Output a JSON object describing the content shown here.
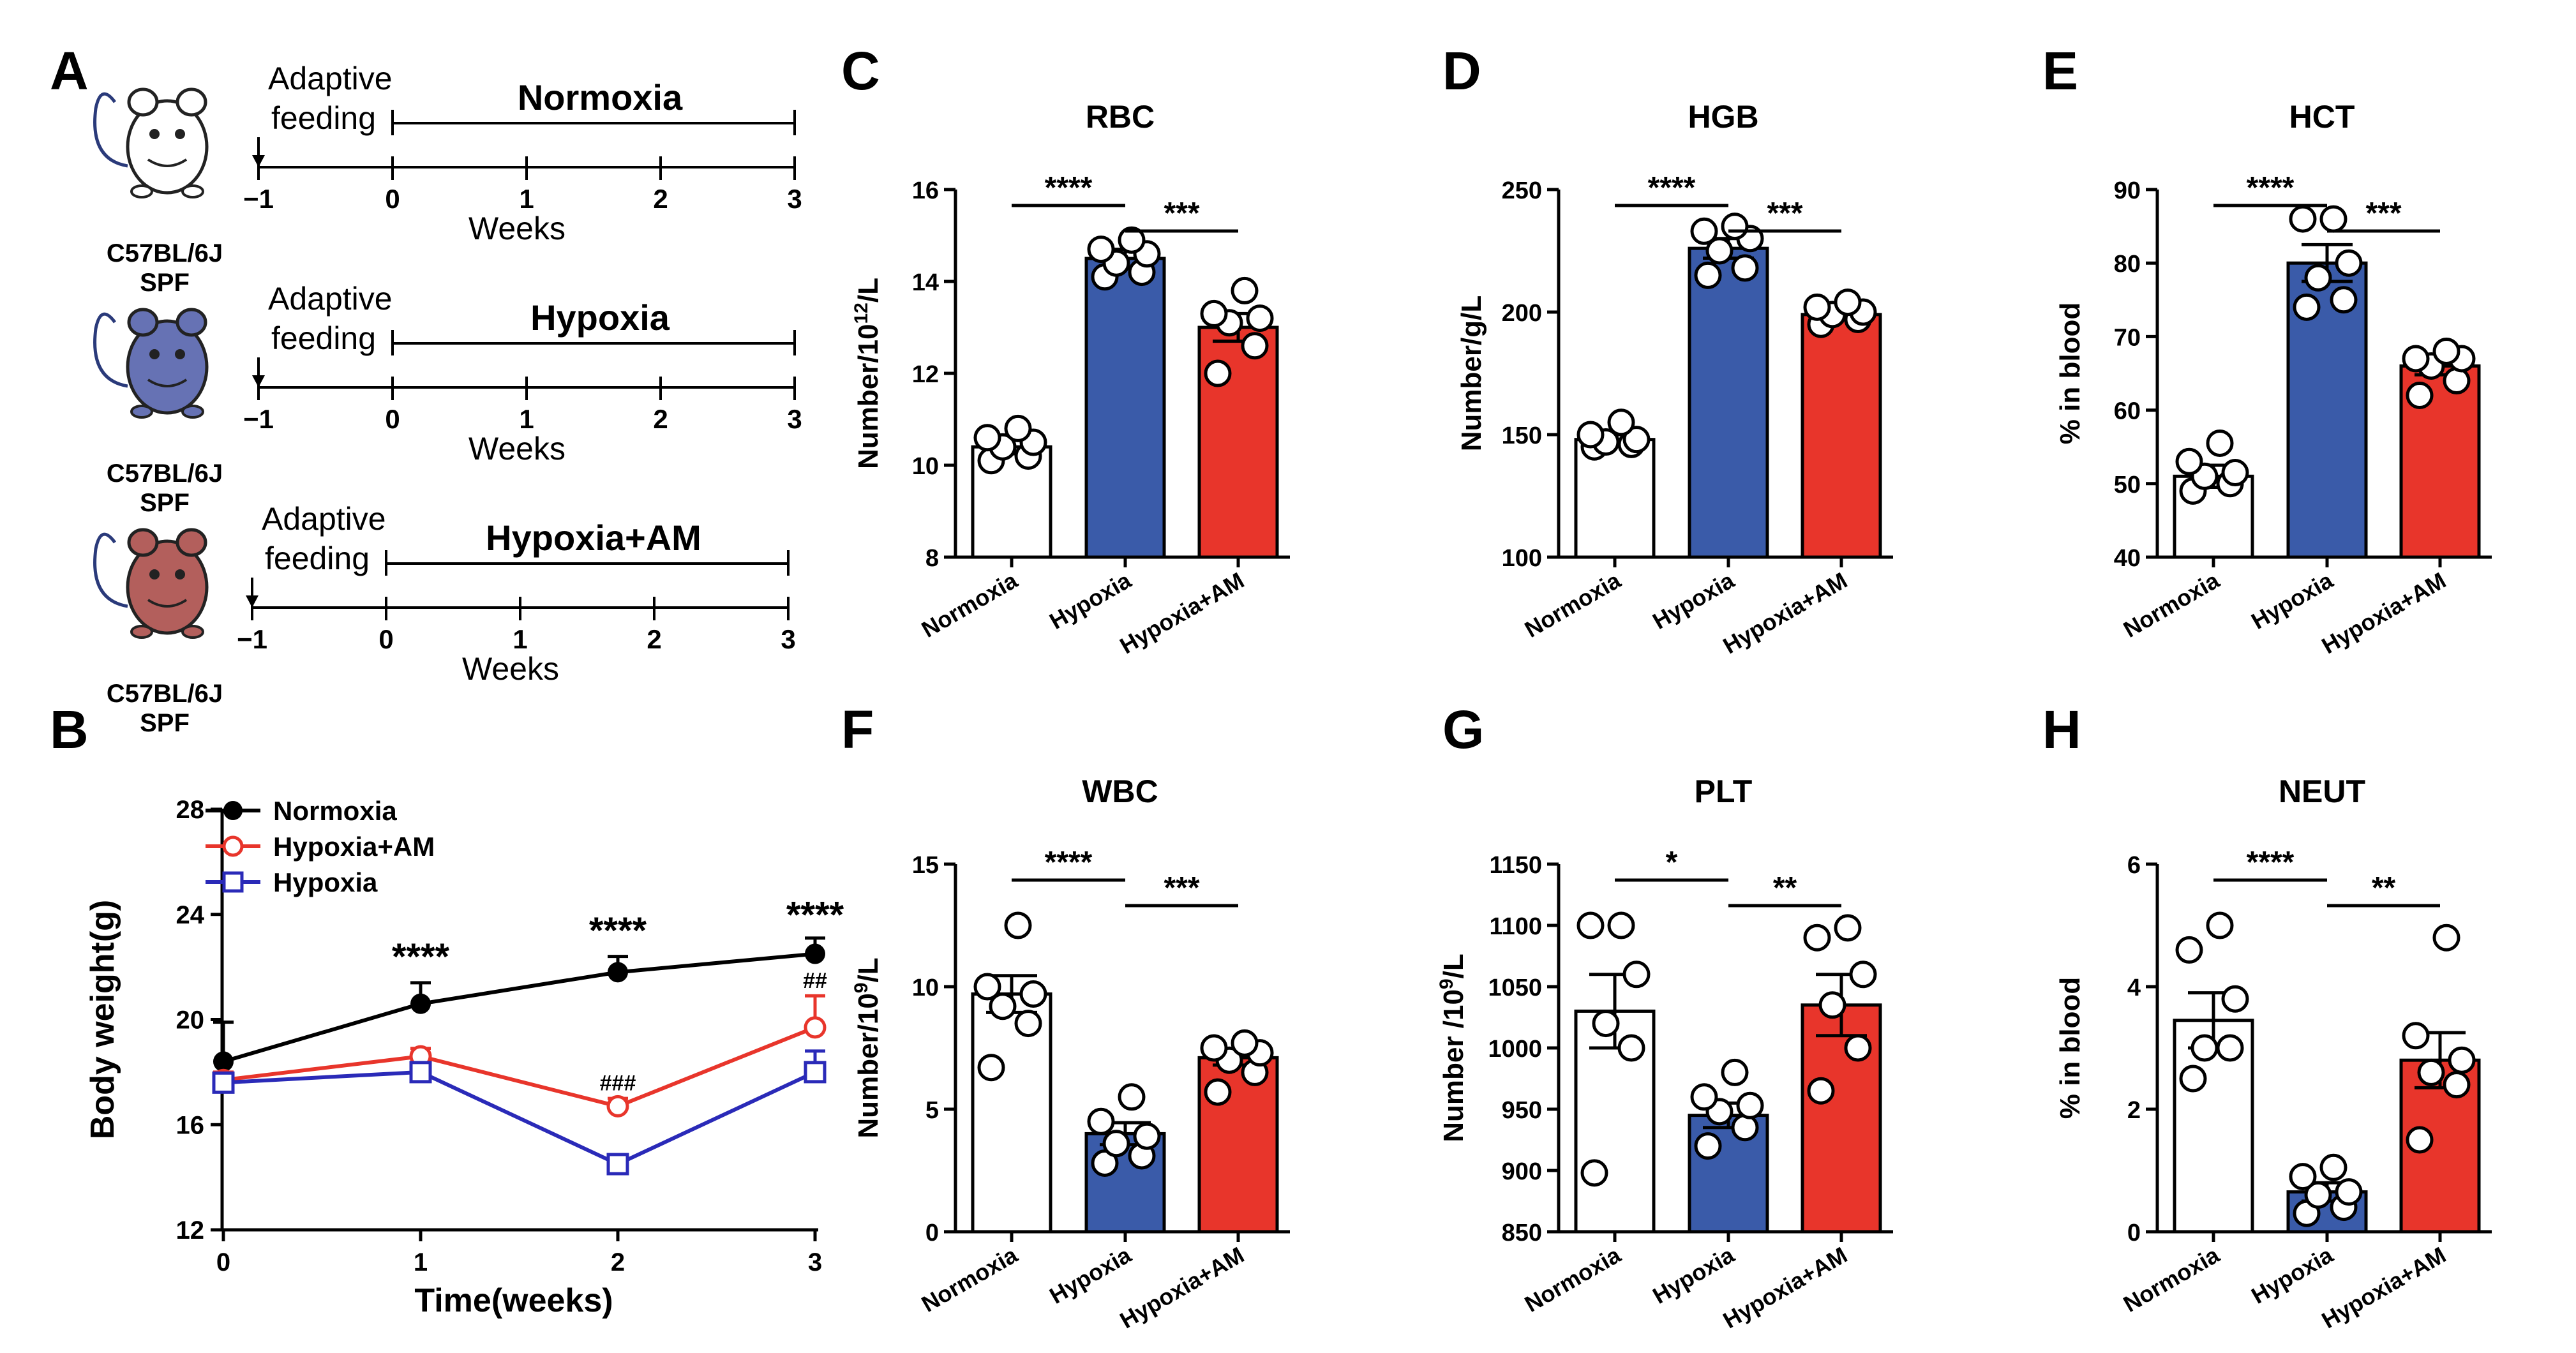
{
  "colors": {
    "normoxia": "#ffffff",
    "hypoxia": "#3a5ba9",
    "hypoxia_am": "#e8352b",
    "black": "#000000",
    "red": "#e8352b",
    "blue": "#2a2ab8"
  },
  "panelA": {
    "letter": "A",
    "timelines": [
      {
        "title": "Normoxia",
        "adaptive": "Adaptive",
        "feeding": "feeding",
        "weeks_label": "Weeks",
        "ticks": [
          "−1",
          "0",
          "1",
          "2",
          "3"
        ],
        "mouse": [
          "C57BL/6J",
          "SPF"
        ],
        "mouse_color": "#ffffff",
        "icon": "white-mouse-icon"
      },
      {
        "title": "Hypoxia",
        "adaptive": "Adaptive",
        "feeding": "feeding",
        "weeks_label": "Weeks",
        "ticks": [
          "−1",
          "0",
          "1",
          "2",
          "3"
        ],
        "mouse": [
          "C57BL/6J",
          "SPF"
        ],
        "mouse_color": "#6672b4",
        "icon": "blue-mouse-icon"
      },
      {
        "title": "Hypoxia+AM",
        "adaptive": "Adaptive",
        "feeding": "feeding",
        "weeks_label": "Weeks",
        "ticks": [
          "−1",
          "0",
          "1",
          "2",
          "3"
        ],
        "mouse": [
          "C57BL/6J",
          "SPF"
        ],
        "mouse_color": "#b35f5c",
        "icon": "red-mouse-icon"
      }
    ]
  },
  "chart_data": [
    {
      "panel": "B",
      "type": "line",
      "title": "",
      "xlabel": "Time(weeks)",
      "ylabel": "Body weight(g)",
      "x": [
        0,
        1,
        2,
        3
      ],
      "xticks": [
        "0",
        "1",
        "2",
        "3"
      ],
      "ylim": [
        12,
        28
      ],
      "yticks": [
        "12",
        "16",
        "20",
        "24",
        "28"
      ],
      "legend": "top-left",
      "series": [
        {
          "name": "Normoxia",
          "color": "#000000",
          "marker": "circle-filled",
          "values": [
            18.4,
            20.6,
            21.8,
            22.5
          ],
          "err": [
            1.5,
            0.8,
            0.6,
            0.6
          ]
        },
        {
          "name": "Hypoxia+AM",
          "color": "#e8352b",
          "marker": "circle-open",
          "values": [
            17.7,
            18.6,
            16.7,
            19.7
          ],
          "err": [
            0.3,
            0.3,
            0.3,
            1.2
          ]
        },
        {
          "name": "Hypoxia",
          "color": "#2a2ab8",
          "marker": "square-open",
          "values": [
            17.6,
            18.0,
            14.5,
            18.0
          ],
          "err": [
            0.2,
            0.3,
            0.3,
            0.8
          ]
        }
      ],
      "annotations": [
        {
          "x": 1,
          "label": "****",
          "y": 21.9
        },
        {
          "x": 2,
          "label": "****",
          "y": 22.9
        },
        {
          "x": 3,
          "label": "****",
          "y": 23.5
        },
        {
          "x": 2,
          "label": "###",
          "y": 17.3
        },
        {
          "x": 3,
          "label": "##",
          "y": 21.2
        }
      ]
    },
    {
      "panel": "C",
      "type": "bar",
      "title": "RBC",
      "ylabel": "Number/10^12/L",
      "categories": [
        "Normoxia",
        "Hypoxia",
        "Hypoxia+AM"
      ],
      "values": [
        10.4,
        14.5,
        13.0
      ],
      "sem": [
        0.15,
        0.2,
        0.3
      ],
      "ylim": [
        8,
        16
      ],
      "yticks": [
        "8",
        "10",
        "12",
        "14",
        "16"
      ],
      "points": [
        [
          10.1,
          10.2,
          10.4,
          10.5,
          10.6,
          10.8
        ],
        [
          14.1,
          14.2,
          14.4,
          14.6,
          14.7,
          14.9
        ],
        [
          12.0,
          12.6,
          13.1,
          13.2,
          13.3,
          13.8
        ]
      ],
      "sig": [
        {
          "from": 0,
          "to": 1,
          "label": "****"
        },
        {
          "from": 1,
          "to": 2,
          "label": "***"
        }
      ]
    },
    {
      "panel": "D",
      "type": "bar",
      "title": "HGB",
      "ylabel": "Number/g/L",
      "categories": [
        "Normoxia",
        "Hypoxia",
        "Hypoxia+AM"
      ],
      "values": [
        148,
        226,
        199
      ],
      "sem": [
        2,
        4,
        2
      ],
      "ylim": [
        100,
        250
      ],
      "yticks": [
        "100",
        "150",
        "200",
        "250"
      ],
      "points": [
        [
          145,
          146,
          147,
          148,
          150,
          155
        ],
        [
          215,
          218,
          225,
          230,
          233,
          235
        ],
        [
          195,
          197,
          199,
          200,
          202,
          204
        ]
      ],
      "sig": [
        {
          "from": 0,
          "to": 1,
          "label": "****"
        },
        {
          "from": 1,
          "to": 2,
          "label": "***"
        }
      ]
    },
    {
      "panel": "E",
      "type": "bar",
      "title": "HCT",
      "ylabel": "% in blood",
      "categories": [
        "Normoxia",
        "Hypoxia",
        "Hypoxia+AM"
      ],
      "values": [
        51,
        80,
        66
      ],
      "sem": [
        1.5,
        2.5,
        1.2
      ],
      "ylim": [
        40,
        90
      ],
      "yticks": [
        "40",
        "50",
        "60",
        "70",
        "80",
        "90"
      ],
      "points": [
        [
          49,
          50,
          51,
          51.5,
          53,
          55.5
        ],
        [
          74,
          75,
          78,
          80,
          86,
          86
        ],
        [
          62,
          64,
          66,
          67,
          67,
          68
        ]
      ],
      "sig": [
        {
          "from": 0,
          "to": 1,
          "label": "****"
        },
        {
          "from": 1,
          "to": 2,
          "label": "***"
        }
      ]
    },
    {
      "panel": "F",
      "type": "bar",
      "title": "WBC",
      "ylabel": "Number/10^9/L",
      "categories": [
        "Normoxia",
        "Hypoxia",
        "Hypoxia+AM"
      ],
      "values": [
        9.7,
        4.0,
        7.1
      ],
      "sem": [
        0.75,
        0.45,
        0.3
      ],
      "ylim": [
        0,
        15
      ],
      "yticks": [
        "0",
        "5",
        "10",
        "15"
      ],
      "points": [
        [
          6.7,
          8.5,
          9.2,
          9.7,
          10.0,
          12.5
        ],
        [
          2.8,
          3.1,
          3.6,
          3.9,
          4.5,
          5.5
        ],
        [
          5.7,
          6.5,
          7.0,
          7.3,
          7.5,
          7.7
        ]
      ],
      "sig": [
        {
          "from": 0,
          "to": 1,
          "label": "****"
        },
        {
          "from": 1,
          "to": 2,
          "label": "***"
        }
      ]
    },
    {
      "panel": "G",
      "type": "bar",
      "title": "PLT",
      "ylabel": "Number /10^9/L",
      "categories": [
        "Normoxia",
        "Hypoxia",
        "Hypoxia+AM"
      ],
      "values": [
        1030,
        945,
        1035
      ],
      "sem": [
        30,
        10,
        25
      ],
      "ylim": [
        850,
        1150
      ],
      "yticks": [
        "850",
        "900",
        "950",
        "1000",
        "1050",
        "1100",
        "1150"
      ],
      "points": [
        [
          898,
          1000,
          1020,
          1060,
          1100,
          1100
        ],
        [
          920,
          935,
          948,
          953,
          960,
          980
        ],
        [
          965,
          1000,
          1035,
          1060,
          1090,
          1098
        ]
      ],
      "sig": [
        {
          "from": 0,
          "to": 1,
          "label": "*"
        },
        {
          "from": 1,
          "to": 2,
          "label": "**"
        }
      ]
    },
    {
      "panel": "H",
      "type": "bar",
      "title": "NEUT",
      "ylabel": "% in blood",
      "categories": [
        "Normoxia",
        "Hypoxia",
        "Hypoxia+AM"
      ],
      "values": [
        3.45,
        0.65,
        2.8
      ],
      "sem": [
        0.45,
        0.15,
        0.45
      ],
      "ylim": [
        0,
        6
      ],
      "yticks": [
        "0",
        "2",
        "4",
        "6"
      ],
      "points": [
        [
          2.5,
          3.0,
          3.0,
          3.8,
          4.6,
          5.0
        ],
        [
          0.3,
          0.4,
          0.6,
          0.65,
          0.9,
          1.05
        ],
        [
          1.5,
          2.4,
          2.6,
          2.8,
          3.2,
          4.8
        ]
      ],
      "sig": [
        {
          "from": 0,
          "to": 1,
          "label": "****"
        },
        {
          "from": 1,
          "to": 2,
          "label": "**"
        }
      ]
    }
  ]
}
